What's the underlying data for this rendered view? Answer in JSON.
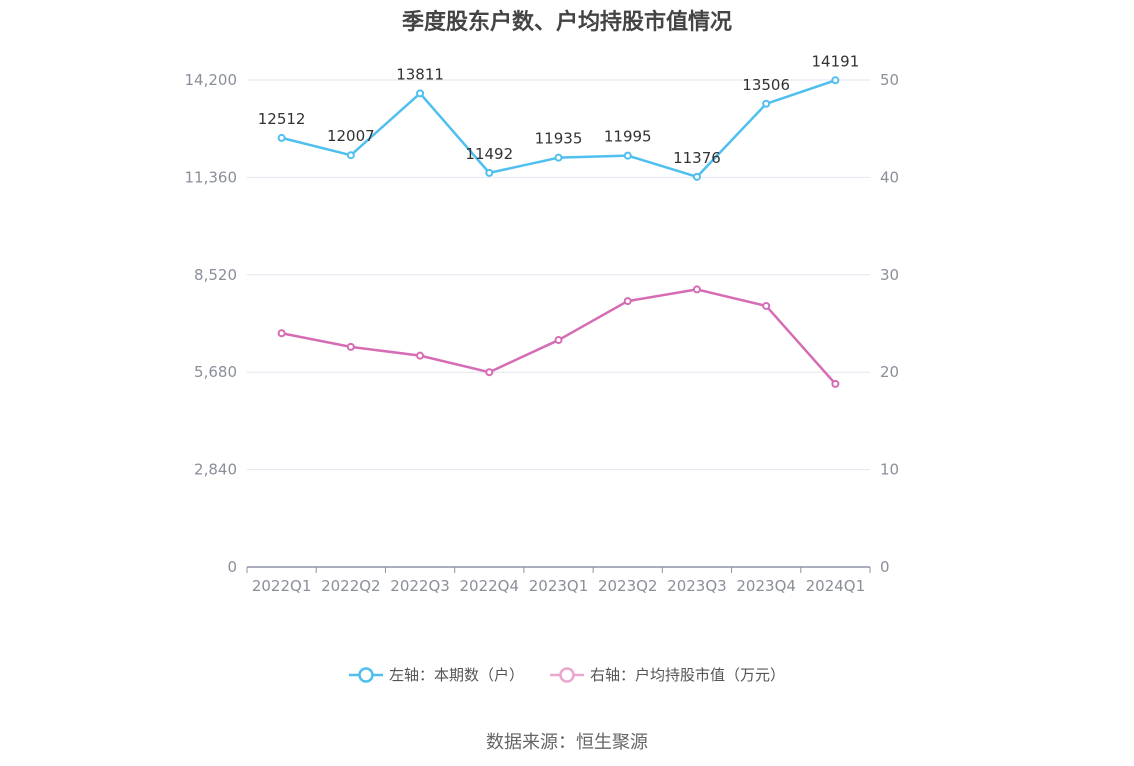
{
  "chart_data": {
    "type": "line",
    "title": "季度股东户数、户均持股市值情况",
    "categories": [
      "2022Q1",
      "2022Q2",
      "2022Q3",
      "2022Q4",
      "2023Q1",
      "2023Q2",
      "2023Q3",
      "2023Q4",
      "2024Q1"
    ],
    "left_axis": {
      "ylim": [
        0,
        14200
      ],
      "ticks": [
        "0",
        "2,840",
        "5,680",
        "8,520",
        "11,360",
        "14,200"
      ]
    },
    "right_axis": {
      "ylim": [
        0,
        50
      ],
      "ticks": [
        "0",
        "10",
        "20",
        "30",
        "40",
        "50"
      ]
    },
    "series": [
      {
        "name": "左轴：本期数（户）",
        "axis": "left",
        "color": "#4fbfef",
        "values": [
          12512,
          12007,
          13811,
          11492,
          11935,
          11995,
          11376,
          13506,
          14191
        ],
        "labels": [
          "12512",
          "12007",
          "13811",
          "11492",
          "11935",
          "11995",
          "11376",
          "13506",
          "14191"
        ]
      },
      {
        "name": "右轴：户均持股市值（万元）",
        "axis": "right",
        "color": "#d56cb4",
        "values": [
          24.0,
          22.6,
          21.7,
          20.0,
          23.3,
          27.3,
          28.5,
          26.8,
          18.8
        ]
      }
    ],
    "grid": true,
    "legend_position": "bottom"
  },
  "legend": {
    "items": [
      "左轴：本期数（户）",
      "右轴：户均持股市值（万元）"
    ],
    "colors": [
      "#4fbfef",
      "#e9a6cf"
    ]
  },
  "source": "数据来源：恒生聚源"
}
